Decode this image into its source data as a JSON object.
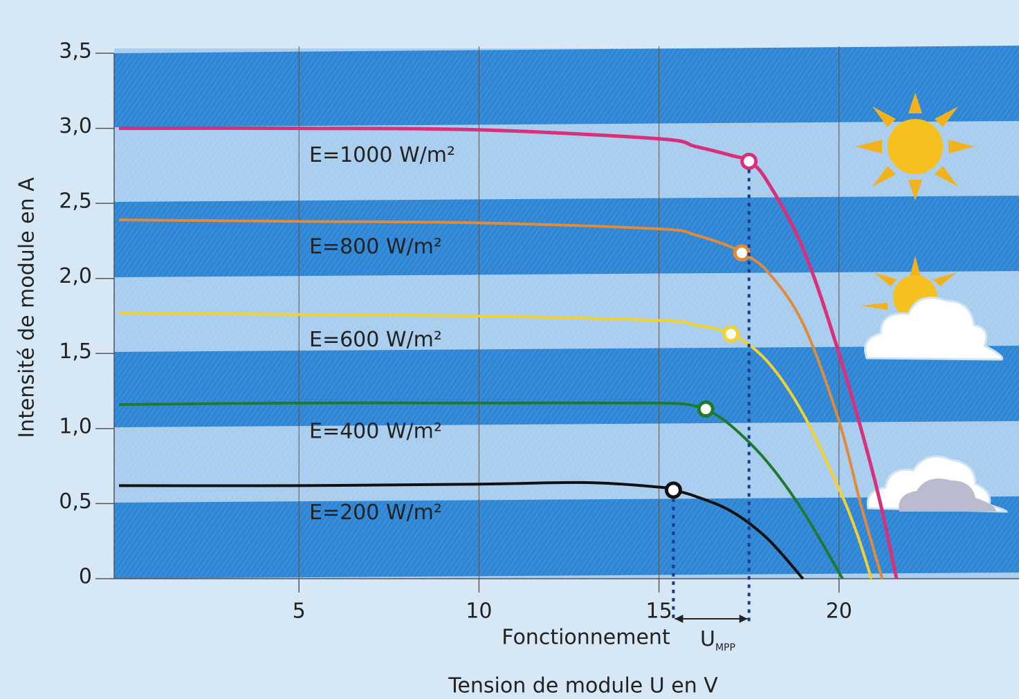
{
  "chart_data": {
    "type": "line",
    "xlabel": "Tension de module U en V",
    "ylabel": "Intensité de module en A",
    "xlim": [
      0,
      25
    ],
    "ylim": [
      0,
      3.5
    ],
    "xticks": [
      5,
      10,
      15,
      20
    ],
    "yticks": [
      0,
      {
        "value": 0.5,
        "label": "0,5"
      },
      {
        "value": 1.0,
        "label": "1,0"
      },
      {
        "value": 1.5,
        "label": "1,5"
      },
      {
        "value": 2.0,
        "label": "2,0"
      },
      {
        "value": 2.5,
        "label": "2,5"
      },
      {
        "value": 3.0,
        "label": "3,0"
      },
      {
        "value": 3.5,
        "label": "3,5"
      }
    ],
    "grid": true,
    "series": [
      {
        "name": "E=1000 W/m²",
        "color": "#d8307a",
        "x": [
          0,
          5,
          10,
          15,
          16,
          17,
          17.5,
          18,
          19,
          20,
          21,
          21.6
        ],
        "values": [
          3.0,
          3.0,
          2.99,
          2.93,
          2.88,
          2.82,
          2.78,
          2.65,
          2.2,
          1.5,
          0.65,
          0
        ],
        "mpp_x": 17.5,
        "mpp_y": 2.78
      },
      {
        "name": "E=800 W/m²",
        "color": "#e08a3c",
        "x": [
          0,
          5,
          10,
          15,
          16,
          17,
          17.3,
          18,
          19,
          20,
          20.6,
          21.2
        ],
        "values": [
          2.39,
          2.38,
          2.37,
          2.33,
          2.29,
          2.21,
          2.17,
          2.05,
          1.7,
          1.05,
          0.5,
          0
        ],
        "mpp_x": 17.3,
        "mpp_y": 2.17
      },
      {
        "name": "E=600 W/m²",
        "color": "#f2d230",
        "x": [
          0,
          5,
          10,
          15,
          16,
          17,
          18,
          19,
          20,
          20.5,
          20.9
        ],
        "values": [
          1.77,
          1.76,
          1.75,
          1.72,
          1.69,
          1.63,
          1.45,
          1.1,
          0.6,
          0.3,
          0
        ],
        "mpp_x": 17.0,
        "mpp_y": 1.63
      },
      {
        "name": "E=400 W/m²",
        "color": "#1e7a2e",
        "x": [
          0,
          5,
          10,
          15,
          16,
          16.3,
          17,
          18,
          19,
          20.1
        ],
        "values": [
          1.16,
          1.17,
          1.17,
          1.17,
          1.15,
          1.13,
          1.02,
          0.78,
          0.45,
          0
        ],
        "mpp_x": 16.3,
        "mpp_y": 1.13
      },
      {
        "name": "E=200 W/m²",
        "color": "#111111",
        "x": [
          0,
          5,
          10,
          13,
          15,
          15.4,
          16,
          17,
          18,
          19
        ],
        "values": [
          0.62,
          0.62,
          0.63,
          0.64,
          0.61,
          0.59,
          0.55,
          0.45,
          0.27,
          0
        ],
        "mpp_x": 15.4,
        "mpp_y": 0.59
      }
    ],
    "annotations": {
      "operating": "Fonctionnement",
      "umpp": "U",
      "umpp_sub": "MPP"
    }
  }
}
